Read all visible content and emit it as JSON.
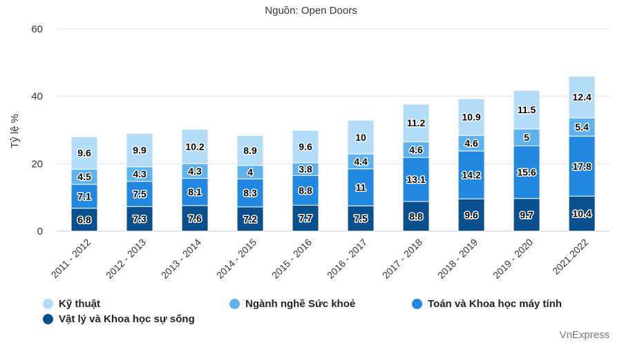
{
  "source_note": "Nguồn: Open Doors",
  "credit": "VnExpress",
  "colors": {
    "ky_thuat": "#b3dcf8",
    "suc_khoe": "#5eb3ee",
    "toan_may_tinh": "#2389e0",
    "vat_ly": "#0a4f8e",
    "grid": "#e3e3e3",
    "axis_text": "#333333"
  },
  "legend": [
    {
      "label": "Kỹ thuật",
      "color": "#b3dcf8"
    },
    {
      "label": "Ngành nghề Sức khoẻ",
      "color": "#5eb3ee"
    },
    {
      "label": "Toán và Khoa học máy tính",
      "color": "#2389e0"
    },
    {
      "label": "Vật lý và Khoa học sự sống",
      "color": "#0a4f8e"
    }
  ],
  "chart_data": {
    "type": "bar",
    "stacked": true,
    "title": "",
    "xlabel": "",
    "ylabel": "Tỷ lệ %",
    "ylim": [
      0,
      60
    ],
    "yticks": [
      0,
      20,
      40,
      60
    ],
    "grid": true,
    "legend_position": "bottom",
    "categories": [
      "2011 - 2012",
      "2012 - 2013",
      "2013 - 2014",
      "2014 - 2015",
      "2015 - 2016",
      "2016 - 2017",
      "2017 - 2018",
      "2018 - 2019",
      "2019 - 2020",
      "2021.2022"
    ],
    "series": [
      {
        "name": "Vật lý và Khoa học sự sống",
        "color": "#0a4f8e",
        "values": [
          6.8,
          7.3,
          7.6,
          7.2,
          7.7,
          7.5,
          8.8,
          9.6,
          9.7,
          10.4
        ]
      },
      {
        "name": "Toán và Khoa học máy tính",
        "color": "#2389e0",
        "values": [
          7.1,
          7.5,
          8.1,
          8.3,
          8.8,
          11,
          13.1,
          14.2,
          15.6,
          17.8
        ]
      },
      {
        "name": "Ngành nghề Sức khoẻ",
        "color": "#5eb3ee",
        "values": [
          4.5,
          4.3,
          4.3,
          4,
          3.8,
          4.4,
          4.6,
          4.6,
          5,
          5.4
        ]
      },
      {
        "name": "Kỹ thuật",
        "color": "#b3dcf8",
        "values": [
          9.6,
          9.9,
          10.2,
          8.9,
          9.6,
          10,
          11.2,
          10.9,
          11.5,
          12.4
        ]
      }
    ]
  }
}
